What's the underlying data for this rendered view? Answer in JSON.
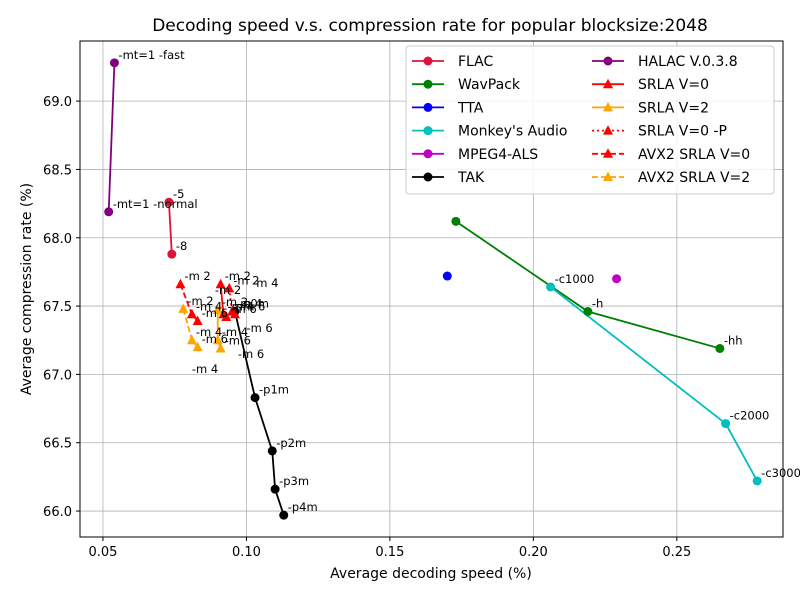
{
  "chart_data": {
    "type": "line",
    "title": "Decoding speed v.s. compression rate for popular blocksize:2048",
    "xlabel": "Average decoding speed (%)",
    "ylabel": "Average compression rate (%)",
    "xlim": [
      0.042,
      0.287
    ],
    "ylim": [
      65.81,
      69.44
    ],
    "xticks": [
      0.05,
      0.1,
      0.15,
      0.2,
      0.25
    ],
    "xtick_labels": [
      "0.05",
      "0.10",
      "0.15",
      "0.20",
      "0.25"
    ],
    "yticks": [
      66.0,
      66.5,
      67.0,
      67.5,
      68.0,
      68.5,
      69.0
    ],
    "ytick_labels": [
      "66.0",
      "66.5",
      "67.0",
      "67.5",
      "68.0",
      "68.5",
      "69.0"
    ],
    "grid": true,
    "legend_position": "top-right",
    "series": [
      {
        "name": "FLAC",
        "color": "#dc143c",
        "marker": "circle",
        "line": "solid",
        "points": [
          [
            0.073,
            68.26,
            "-5"
          ],
          [
            0.074,
            67.88,
            "-8"
          ]
        ]
      },
      {
        "name": "WavPack",
        "color": "#008000",
        "marker": "circle",
        "line": "solid",
        "points": [
          [
            0.173,
            68.12,
            ""
          ],
          [
            0.219,
            67.46,
            "-h"
          ],
          [
            0.265,
            67.19,
            "-hh"
          ]
        ]
      },
      {
        "name": "TTA",
        "color": "#0000ff",
        "marker": "circle",
        "line": "solid",
        "points": [
          [
            0.17,
            67.72,
            ""
          ]
        ]
      },
      {
        "name": "Monkey's Audio",
        "color": "#00bfbf",
        "marker": "circle",
        "line": "solid",
        "points": [
          [
            0.206,
            67.64,
            "-c1000"
          ],
          [
            0.267,
            66.64,
            "-c2000"
          ],
          [
            0.278,
            66.22,
            "-c3000"
          ]
        ]
      },
      {
        "name": "MPEG4-ALS",
        "color": "#bf00bf",
        "marker": "circle",
        "line": "solid",
        "points": [
          [
            0.229,
            67.7,
            ""
          ]
        ]
      },
      {
        "name": "TAK",
        "color": "#000000",
        "marker": "circle",
        "line": "solid",
        "points": [
          [
            0.096,
            67.46,
            "-p0m"
          ],
          [
            0.103,
            66.83,
            "-p1m"
          ],
          [
            0.109,
            66.44,
            "-p2m"
          ],
          [
            0.11,
            66.16,
            "-p3m"
          ],
          [
            0.113,
            65.97,
            "-p4m"
          ]
        ]
      },
      {
        "name": "HALAC V.0.3.8",
        "color": "#800080",
        "marker": "circle",
        "line": "solid",
        "points": [
          [
            0.054,
            69.28,
            "-mt=1 -fast"
          ],
          [
            0.052,
            68.19,
            "-mt=1 -normal"
          ]
        ]
      },
      {
        "name": "SRLA V=0",
        "color": "#ff0000",
        "marker": "triangle",
        "line": "solid",
        "points": [
          [
            0.091,
            67.66,
            "-m 2"
          ],
          [
            0.092,
            67.44,
            "-m 4"
          ],
          [
            0.093,
            67.42,
            "-m 6"
          ]
        ]
      },
      {
        "name": "SRLA V=2",
        "color": "#ffa500",
        "marker": "triangle",
        "line": "solid",
        "points": [
          [
            0.09,
            67.47,
            "-m 2"
          ],
          [
            0.09,
            67.25,
            "-m 4"
          ],
          [
            0.091,
            67.19,
            "-m 6"
          ]
        ]
      },
      {
        "name": "SRLA V=0 -P",
        "color": "#ff0000",
        "marker": "triangle",
        "line": "dotted",
        "points": [
          [
            0.094,
            67.63,
            "-m 2"
          ],
          [
            0.095,
            67.46,
            "-m 4"
          ],
          [
            0.096,
            67.44,
            "-m 6"
          ]
        ]
      },
      {
        "name": "AVX2 SRLA V=0",
        "color": "#ff0000",
        "marker": "triangle",
        "line": "dashed",
        "points": [
          [
            0.077,
            67.66,
            "-m 2"
          ],
          [
            0.081,
            67.44,
            "-m 4"
          ],
          [
            0.083,
            67.39,
            "-m 6"
          ]
        ]
      },
      {
        "name": "AVX2 SRLA V=2",
        "color": "#ffa500",
        "marker": "triangle",
        "line": "dashed",
        "points": [
          [
            0.078,
            67.48,
            "-m 2"
          ],
          [
            0.081,
            67.25,
            "-m 4"
          ],
          [
            0.083,
            67.2,
            "-m 6"
          ]
        ]
      }
    ],
    "extra_annotations": [
      {
        "x": 0.089,
        "y": 67.59,
        "text": "-m 2"
      },
      {
        "x": 0.102,
        "y": 67.64,
        "text": "-m 4"
      },
      {
        "x": 0.1,
        "y": 67.31,
        "text": "-m 6"
      },
      {
        "x": 0.081,
        "y": 67.01,
        "text": "-m 4"
      },
      {
        "x": 0.097,
        "y": 67.12,
        "text": "-m 6"
      }
    ]
  }
}
